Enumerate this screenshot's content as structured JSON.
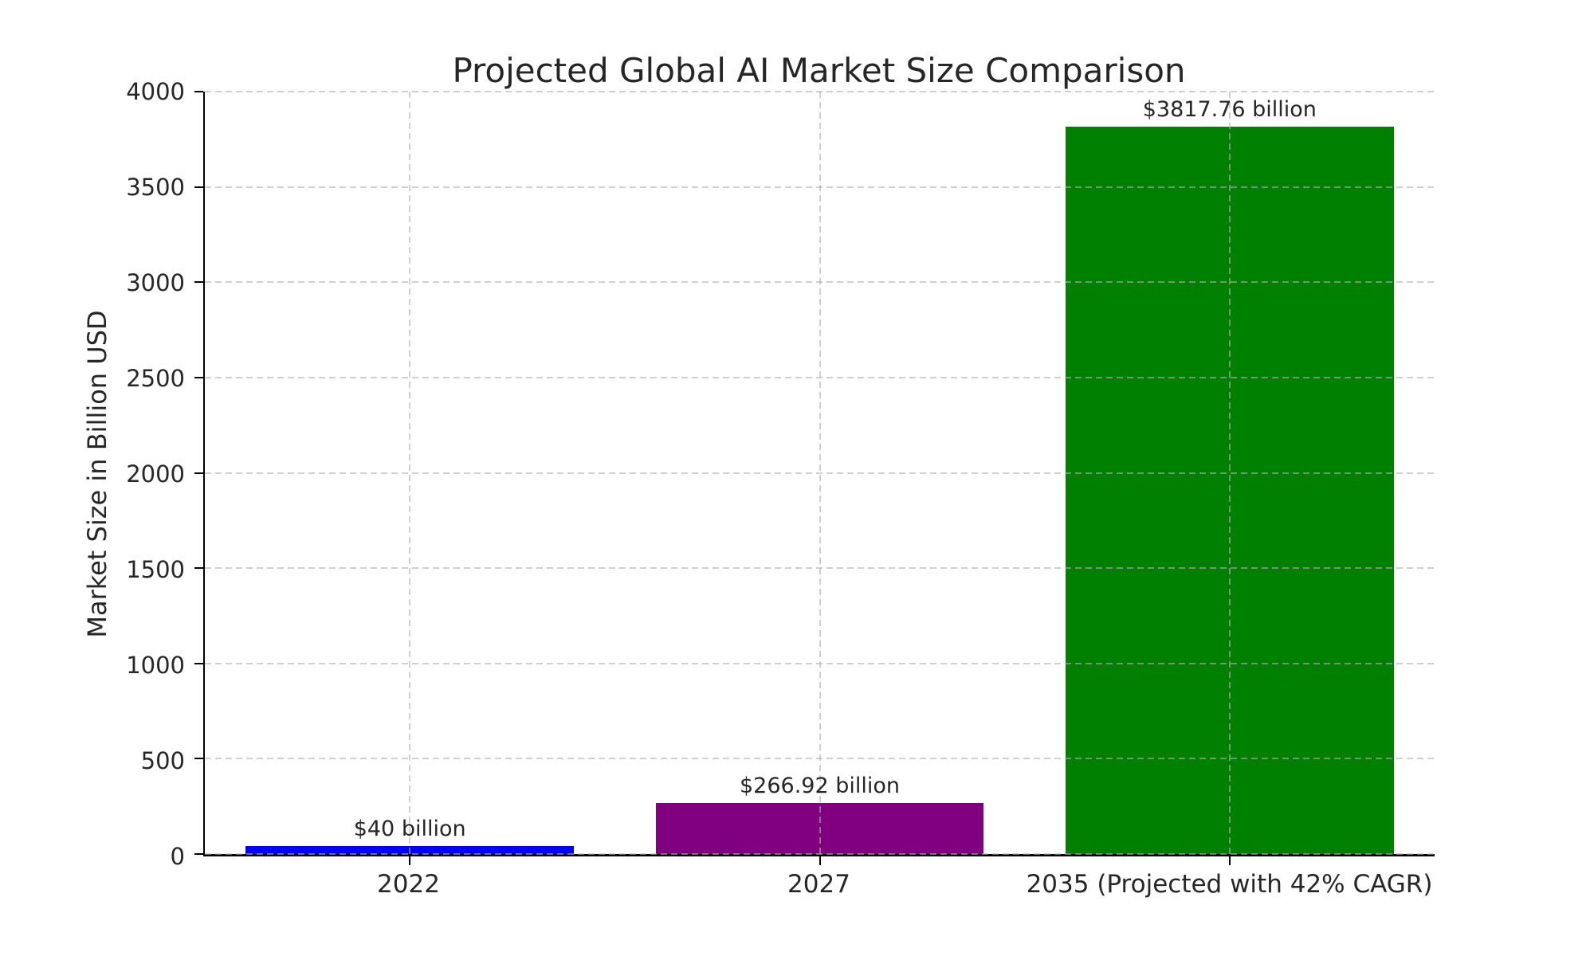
{
  "chart_data": {
    "type": "bar",
    "title": "Projected Global AI Market Size Comparison",
    "ylabel": "Market Size in Billion USD",
    "xlabel": "",
    "categories": [
      "2022",
      "2027",
      "2035 (Projected with 42% CAGR)"
    ],
    "values": [
      40,
      266.92,
      3817.76
    ],
    "bar_labels": [
      "$40 billion",
      "$266.92 billion",
      "$3817.76 billion"
    ],
    "bar_colors": [
      "#0000ff",
      "#800080",
      "#008000"
    ],
    "ylim": [
      0,
      4000
    ],
    "yticks": [
      0,
      500,
      1000,
      1500,
      2000,
      2500,
      3000,
      3500,
      4000
    ],
    "bar_width_fraction": 0.8,
    "grid": {
      "style": "dashed",
      "color": "#b0b0b0",
      "horizontal": true,
      "vertical": true
    },
    "legend": "none",
    "background": "#ffffff"
  }
}
